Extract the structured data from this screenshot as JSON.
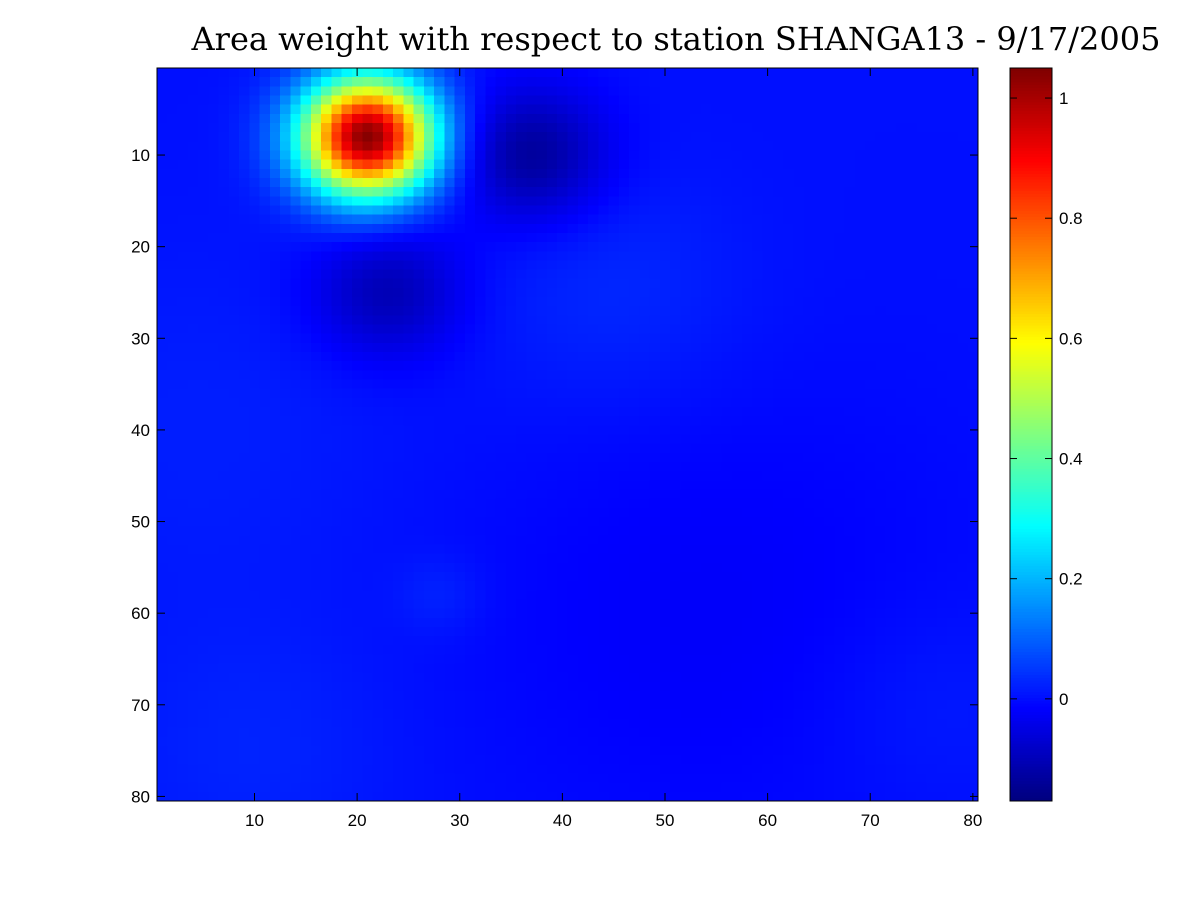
{
  "chart_data": {
    "type": "heatmap",
    "title": "Area weight with respect to station SHANGA13 - 9/17/2005",
    "xlabel": "",
    "ylabel": "",
    "grid": false,
    "colormap": "jet",
    "xlim": [
      0.5,
      80.5
    ],
    "ylim": [
      0.5,
      80.5
    ],
    "y_reversed": true,
    "x_ticks": [
      10,
      20,
      30,
      40,
      50,
      60,
      70,
      80
    ],
    "y_ticks": [
      10,
      20,
      30,
      40,
      50,
      60,
      70,
      80
    ],
    "colorbar": {
      "range": [
        -0.17,
        1.05
      ],
      "ticks": [
        0,
        0.2,
        0.4,
        0.6,
        0.8,
        1
      ],
      "tick_labels": [
        "0",
        "0.2",
        "0.4",
        "0.6",
        "0.8",
        "1"
      ]
    },
    "grid_size": [
      80,
      80
    ],
    "background_value": 0.0,
    "features": [
      {
        "kind": "peak",
        "x": 21,
        "y": 8,
        "value": 1.04,
        "sigma": 4.5
      },
      {
        "kind": "trough",
        "x": 37,
        "y": 10,
        "value": -0.14,
        "sigma": 5
      },
      {
        "kind": "trough",
        "x": 23,
        "y": 25,
        "value": -0.11,
        "sigma": 5
      },
      {
        "kind": "plateau",
        "x": 45,
        "y": 25,
        "value": 0.05,
        "sigma": 9
      },
      {
        "kind": "plateau",
        "x": 5,
        "y": 40,
        "value": 0.03,
        "sigma": 14
      },
      {
        "kind": "plateau",
        "x": 28,
        "y": 58,
        "value": 0.04,
        "sigma": 3
      },
      {
        "kind": "plateau",
        "x": 10,
        "y": 75,
        "value": 0.04,
        "sigma": 10
      },
      {
        "kind": "plateau",
        "x": 76,
        "y": 70,
        "value": 0.03,
        "sigma": 8
      },
      {
        "kind": "plateau",
        "x": 55,
        "y": 60,
        "value": -0.04,
        "sigma": 18
      }
    ]
  }
}
